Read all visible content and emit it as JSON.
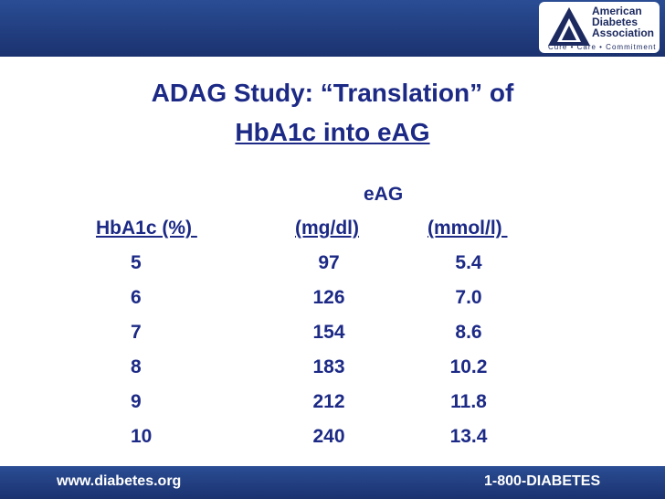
{
  "header": {
    "logo": {
      "line1": "American",
      "line2": "Diabetes",
      "line3": "Association",
      "tagline": "Cure • Care • Commitment"
    }
  },
  "title": {
    "line1": "ADAG Study: “Translation” of",
    "line2": "HbA1c into eAG"
  },
  "table": {
    "group_header": "eAG",
    "columns": [
      "HbA1c (%) ",
      "(mg/dl)",
      "(mmol/l) "
    ],
    "rows": [
      [
        "5",
        "97",
        "5.4"
      ],
      [
        "6",
        "126",
        "7.0"
      ],
      [
        "7",
        "154",
        "8.6"
      ],
      [
        "8",
        "183",
        "10.2"
      ],
      [
        "9",
        "212",
        "11.8"
      ],
      [
        "10",
        "240",
        "13.4"
      ]
    ]
  },
  "footer": {
    "website": "www.diabetes.org",
    "phone": "1-800-DIABETES"
  }
}
